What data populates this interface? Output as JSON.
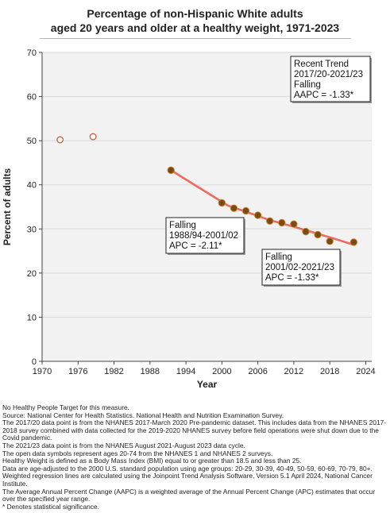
{
  "chart_data": {
    "type": "line",
    "title_line1": "Percentage of non-Hispanic White adults",
    "title_line2": "aged 20 years and older at a healthy weight, 1971-2023",
    "xlabel": "Year",
    "ylabel": "Percent of adults",
    "xlim": [
      1970,
      2025
    ],
    "ylim": [
      0,
      70
    ],
    "x_ticks": [
      1970,
      1976,
      1982,
      1988,
      1994,
      2000,
      2006,
      2012,
      2018,
      2024
    ],
    "y_ticks": [
      0,
      10,
      20,
      30,
      40,
      50,
      60,
      70
    ],
    "grid": "horizontal",
    "series": [
      {
        "kind": "open",
        "points": [
          {
            "x": 1973,
            "y": 50.2
          },
          {
            "x": 1978.5,
            "y": 50.9
          }
        ]
      },
      {
        "kind": "observed",
        "points": [
          {
            "x": 1991.5,
            "y": 43.3
          },
          {
            "x": 2000,
            "y": 35.9
          },
          {
            "x": 2002,
            "y": 34.7
          },
          {
            "x": 2004,
            "y": 34.1
          },
          {
            "x": 2006,
            "y": 33.1
          },
          {
            "x": 2008,
            "y": 31.8
          },
          {
            "x": 2010,
            "y": 31.4
          },
          {
            "x": 2012,
            "y": 31.1
          },
          {
            "x": 2014,
            "y": 29.4
          },
          {
            "x": 2016,
            "y": 28.7
          },
          {
            "x": 2018,
            "y": 27.2
          },
          {
            "x": 2022,
            "y": 27.0
          }
        ]
      },
      {
        "kind": "trend",
        "points": [
          {
            "x": 1991.5,
            "y": 43.3
          },
          {
            "x": 2001,
            "y": 35.3
          },
          {
            "x": 2004,
            "y": 33.9
          },
          {
            "x": 2008,
            "y": 32.0
          },
          {
            "x": 2012,
            "y": 30.5
          },
          {
            "x": 2016,
            "y": 28.9
          },
          {
            "x": 2019,
            "y": 27.7
          },
          {
            "x": 2022,
            "y": 26.4
          }
        ]
      }
    ],
    "colors": {
      "trend_line": "#ee6b5f",
      "marker_fill": "#7a4a14",
      "marker_edge": "#c8842c",
      "open_marker": "#c8542c",
      "grid": "#d9d9d9",
      "plot_bg": "#f2f2f2"
    },
    "annotations": [
      {
        "id": "recent",
        "lines": [
          "Recent Trend",
          "2017/20-2021/23",
          "Falling",
          "AAPC = -1.33*"
        ]
      },
      {
        "id": "seg1",
        "lines": [
          "Falling",
          "1988/94-2001/02",
          "APC = -2.11*"
        ]
      },
      {
        "id": "seg2",
        "lines": [
          "Falling",
          "2001/02-2021/23",
          "APC = -1.33*"
        ]
      }
    ]
  },
  "notes": [
    "No Healthy People Target for this measure.",
    "Source: National Center for Health Statistics. National Health and Nutrition Examination Survey.",
    "The 2017/20 data point is from the NHANES 2017-March 2020 Pre-pandemic dataset. This includes data from the NHANES 2017-2018 survey combined with data collected for the 2019-2020 NHANES survey before field operations were shut down due to the Covid pandemic.",
    "The 2021/23 data point is from the NHANES August 2021-August 2023 data cycle.",
    "The open data symbols represent ages 20-74 from the NHANES 1 and NHANES 2 surveys.",
    "Healthy Weight is defined as a Body Mass Index (BMI) equal to or greater than 18.5 and less than 25.",
    "Data are age-adjusted to the 2000 U.S. standard population using age groups: 20-29, 30-39, 40-49, 50-59, 60-69, 70-79, 80+.",
    "Weighted regression lines are calculated using the Joinpoint Trend Analysis Software, Version 5.1 April 2024, National Cancer Institute.",
    "The Average Annual Percent Change (AAPC) is a weighted average of the Annual Percent Change (APC) estimates that occur over the specified year range.",
    "* Denotes statistical significance."
  ]
}
